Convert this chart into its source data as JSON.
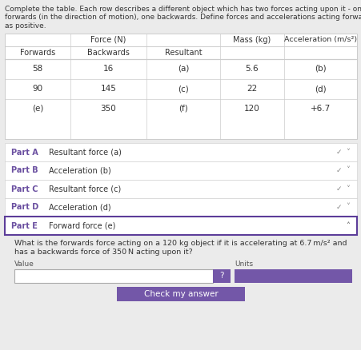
{
  "bg_color": "#ebebeb",
  "white": "#ffffff",
  "title_lines": [
    "Complete the table. Each row describes a different object which has two forces acting upon it - one",
    "forwards (in the direction of motion), one backwards. Define forces and accelerations acting forwards",
    "as positive."
  ],
  "force_header": "Force (N)",
  "mass_header": "Mass (kg)",
  "accel_header": "Acceleration (m/s²)",
  "col2_header": "Forwards",
  "col3_header": "Backwards",
  "col4_header": "Resultant",
  "table_rows": [
    [
      "58",
      "16",
      "(a)",
      "5.6",
      "(b)"
    ],
    [
      "90",
      "145",
      "(c)",
      "22",
      "(d)"
    ],
    [
      "(e)",
      "350",
      "(f)",
      "120",
      "+6.7"
    ]
  ],
  "parts": [
    [
      "Part A",
      "Resultant force (a)",
      false
    ],
    [
      "Part B",
      "Acceleration (b)",
      false
    ],
    [
      "Part C",
      "Resultant force (c)",
      false
    ],
    [
      "Part D",
      "Acceleration (d)",
      false
    ],
    [
      "Part E",
      "Forward force (e)",
      true
    ]
  ],
  "q_line1": "What is the forwards force acting on a 120 kg object if it is accelerating at 6.7 m/s² and",
  "q_line2": "has a backwards force of 350 N acting upon it?",
  "value_label": "Value",
  "units_label": "Units",
  "btn_text": "Check my answer",
  "purple": "#7357a8",
  "purple_dark": "#5c3d99",
  "line_color": "#cccccc",
  "text_dark": "#333333",
  "text_mid": "#555555",
  "text_light": "#888888",
  "part_label_color": "#6a4fa0"
}
